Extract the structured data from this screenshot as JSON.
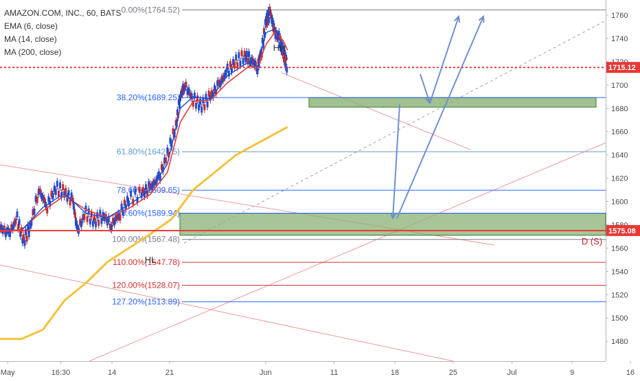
{
  "legend": {
    "symbol": "AMAZON.COM, INC., 60, BATS",
    "lines": [
      "EMA (6, close)",
      "MA (14, close)",
      "MA (200, close)"
    ]
  },
  "chart_data": {
    "type": "line",
    "title": "AMAZON.COM, INC., 60, BATS",
    "ylim": [
      1463,
      1773
    ],
    "y_ticks": [
      1480,
      1500,
      1520,
      1540,
      1560,
      1580,
      1600,
      1620,
      1640,
      1660,
      1680,
      1700,
      1720,
      1740,
      1760
    ],
    "x_ticks": [
      "May",
      "16:30",
      "14",
      "21",
      "Jun",
      "11",
      "18",
      "25",
      "Jul",
      "9",
      "16"
    ],
    "last_price": "1715.12",
    "current_price_label": "1715.12",
    "second_price_label": "1575.08",
    "fib_levels": [
      {
        "label": "0.00%(1764.52)",
        "price": 1764.52,
        "color": "#787b86"
      },
      {
        "label": "38.20%(1689.25)",
        "price": 1689.25,
        "color": "#2962ff"
      },
      {
        "label": "61.80%(1642.75)",
        "price": 1642.75,
        "color": "#5b9bd5"
      },
      {
        "label": "78.60%(1609.65)",
        "price": 1609.65,
        "color": "#2962ff"
      },
      {
        "label": "88.60%(1589.94)",
        "price": 1589.94,
        "color": "#2962ff"
      },
      {
        "label": "100.00%(1567.48)",
        "price": 1567.48,
        "color": "#787b86"
      },
      {
        "label": "110.00%(1547.78)",
        "price": 1547.78,
        "color": "#d32f2f"
      },
      {
        "label": "120.00%(1528.07)",
        "price": 1528.07,
        "color": "#d32f2f"
      },
      {
        "label": "127.20%(1513.89)",
        "price": 1513.89,
        "color": "#2962ff"
      }
    ],
    "annotations": [
      "HH",
      "HL",
      "D (S)"
    ],
    "series": [
      {
        "name": "EMA (6, close)",
        "color": "#1e4bd2"
      },
      {
        "name": "MA (14, close)",
        "color": "#e53935"
      },
      {
        "name": "MA (200, close)",
        "color": "#f2c23c"
      }
    ],
    "price_path": [
      [
        0,
        1578
      ],
      [
        0.02,
        1572
      ],
      [
        0.04,
        1585
      ],
      [
        0.055,
        1566
      ],
      [
        0.07,
        1578
      ],
      [
        0.09,
        1610
      ],
      [
        0.11,
        1596
      ],
      [
        0.13,
        1612
      ],
      [
        0.15,
        1608
      ],
      [
        0.17,
        1600
      ],
      [
        0.18,
        1575
      ],
      [
        0.2,
        1590
      ],
      [
        0.22,
        1583
      ],
      [
        0.24,
        1588
      ],
      [
        0.26,
        1580
      ],
      [
        0.28,
        1590
      ],
      [
        0.3,
        1602
      ],
      [
        0.33,
        1607
      ],
      [
        0.35,
        1612
      ],
      [
        0.37,
        1620
      ],
      [
        0.39,
        1640
      ],
      [
        0.41,
        1665
      ],
      [
        0.42,
        1690
      ],
      [
        0.43,
        1700
      ],
      [
        0.45,
        1688
      ],
      [
        0.47,
        1682
      ],
      [
        0.49,
        1690
      ],
      [
        0.51,
        1700
      ],
      [
        0.53,
        1712
      ],
      [
        0.55,
        1720
      ],
      [
        0.57,
        1725
      ],
      [
        0.585,
        1722
      ],
      [
        0.6,
        1715
      ],
      [
        0.61,
        1730
      ],
      [
        0.62,
        1755
      ],
      [
        0.63,
        1762
      ],
      [
        0.64,
        1745
      ],
      [
        0.65,
        1740
      ],
      [
        0.66,
        1728
      ],
      [
        0.67,
        1715
      ]
    ],
    "ema_path": [
      [
        0,
        1576
      ],
      [
        0.05,
        1575
      ],
      [
        0.1,
        1595
      ],
      [
        0.15,
        1607
      ],
      [
        0.2,
        1590
      ],
      [
        0.25,
        1586
      ],
      [
        0.3,
        1597
      ],
      [
        0.35,
        1610
      ],
      [
        0.39,
        1632
      ],
      [
        0.42,
        1680
      ],
      [
        0.45,
        1690
      ],
      [
        0.49,
        1688
      ],
      [
        0.53,
        1708
      ],
      [
        0.58,
        1720
      ],
      [
        0.6,
        1716
      ],
      [
        0.62,
        1745
      ],
      [
        0.64,
        1748
      ],
      [
        0.66,
        1732
      ],
      [
        0.67,
        1722
      ]
    ],
    "ma_path": [
      [
        0,
        1574
      ],
      [
        0.05,
        1576
      ],
      [
        0.1,
        1592
      ],
      [
        0.15,
        1605
      ],
      [
        0.2,
        1593
      ],
      [
        0.25,
        1586
      ],
      [
        0.3,
        1594
      ],
      [
        0.35,
        1606
      ],
      [
        0.39,
        1625
      ],
      [
        0.42,
        1668
      ],
      [
        0.45,
        1686
      ],
      [
        0.49,
        1687
      ],
      [
        0.53,
        1702
      ],
      [
        0.58,
        1716
      ],
      [
        0.6,
        1716
      ],
      [
        0.62,
        1735
      ],
      [
        0.64,
        1745
      ],
      [
        0.66,
        1738
      ],
      [
        0.67,
        1730
      ]
    ],
    "ma200_path": [
      [
        0,
        1482
      ],
      [
        0.05,
        1482
      ],
      [
        0.1,
        1490
      ],
      [
        0.15,
        1515
      ],
      [
        0.2,
        1530
      ],
      [
        0.25,
        1548
      ],
      [
        0.3,
        1560
      ],
      [
        0.35,
        1572
      ],
      [
        0.4,
        1585
      ],
      [
        0.45,
        1610
      ],
      [
        0.5,
        1625
      ],
      [
        0.55,
        1640
      ],
      [
        0.6,
        1650
      ],
      [
        0.65,
        1660
      ],
      [
        0.67,
        1664
      ]
    ]
  }
}
